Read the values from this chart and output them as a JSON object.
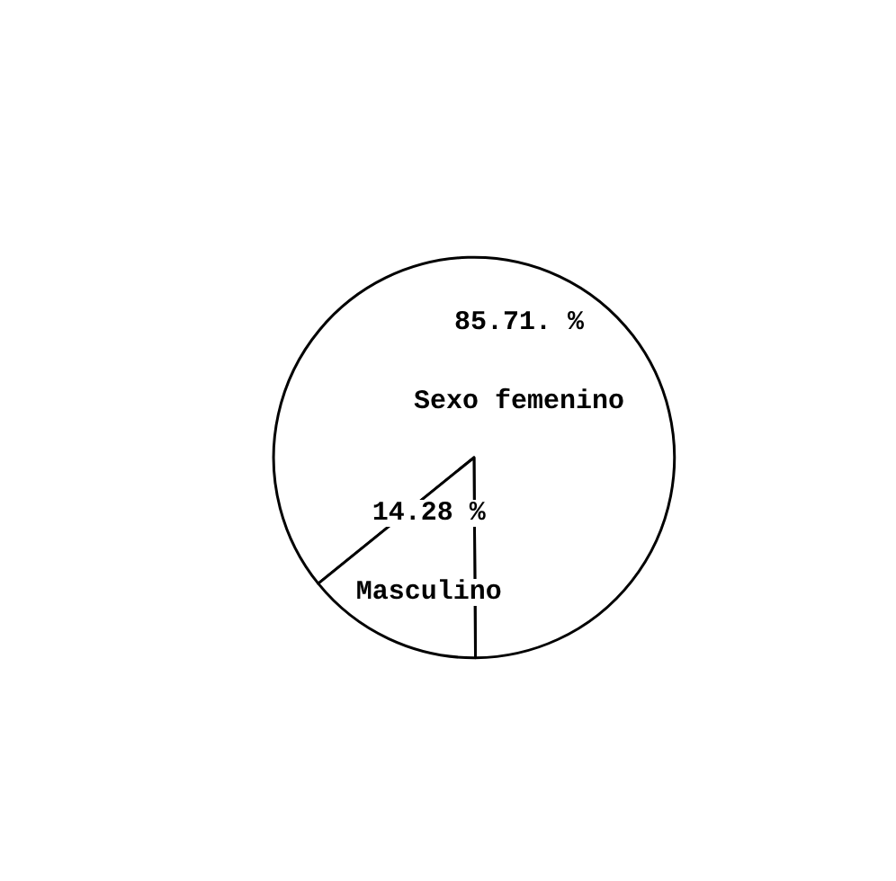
{
  "chart_data": {
    "type": "pie",
    "categories": [
      "Sexo femenino",
      "Masculino"
    ],
    "values": [
      85.71,
      14.28
    ],
    "value_labels": [
      "85.71. %",
      "14.28 %"
    ],
    "colors": [
      "#ffffff",
      "#ffffff"
    ],
    "legend": false
  }
}
